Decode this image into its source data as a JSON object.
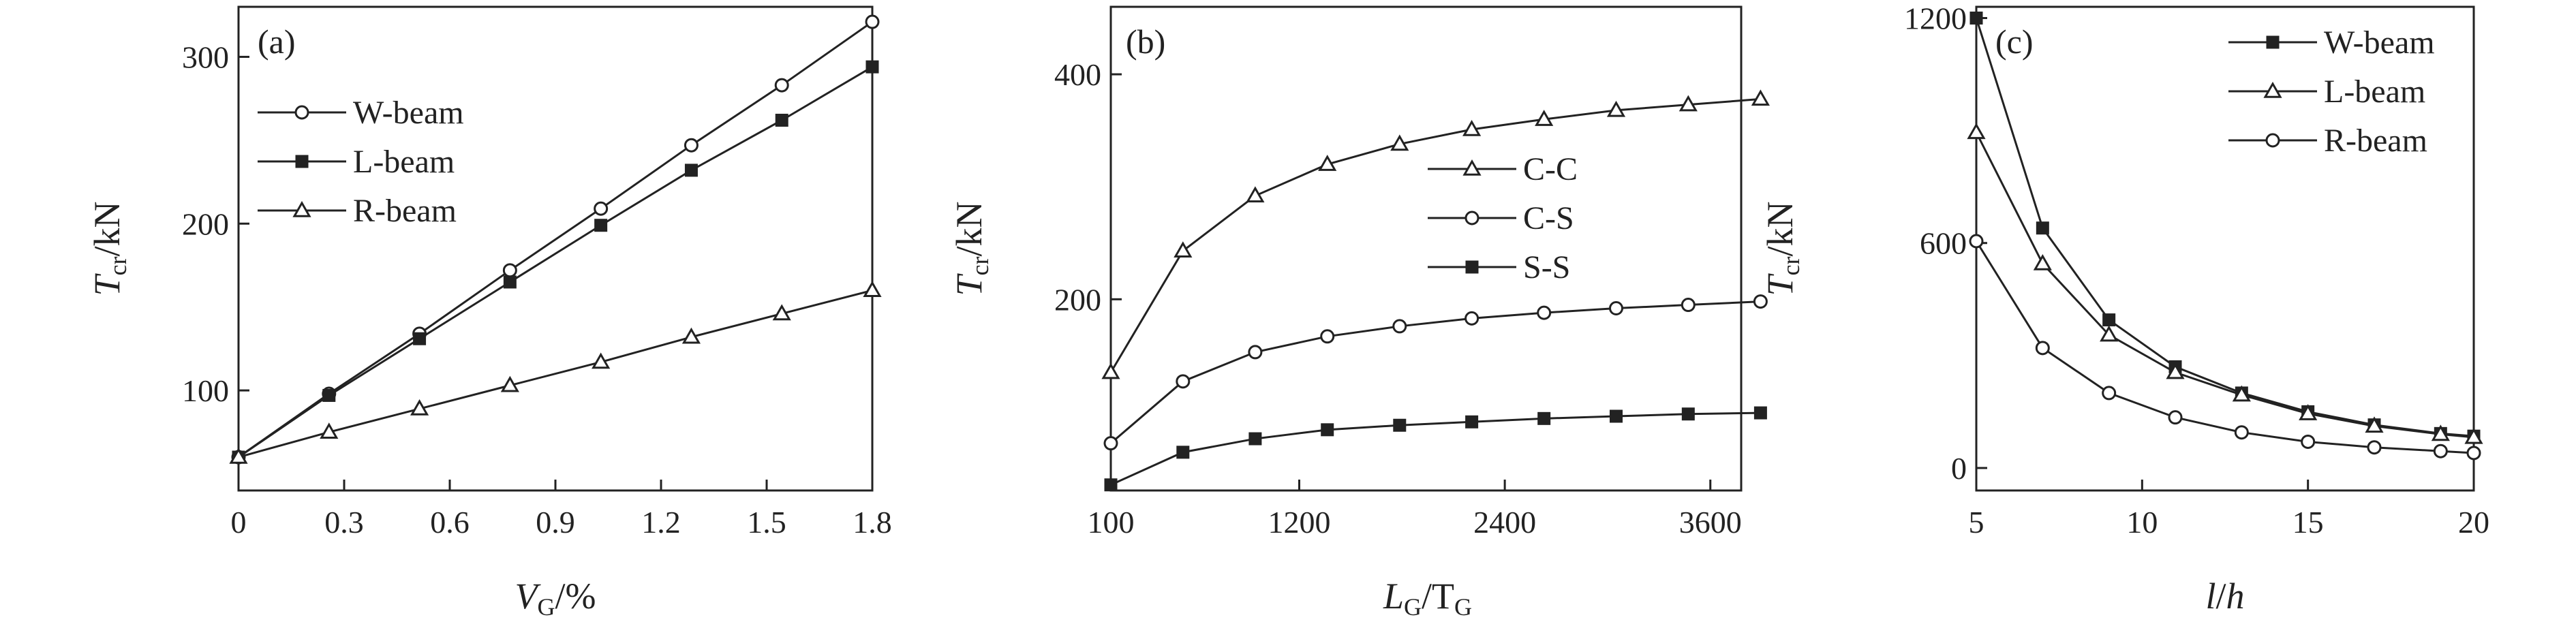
{
  "chart_data": [
    {
      "type": "line",
      "panel_label": "(a)",
      "xlabel": {
        "main": "V",
        "sub": "G",
        "suffix": "/%"
      },
      "ylabel": {
        "main": "T",
        "sub": "cr",
        "suffix": "/kN"
      },
      "xlim": [
        0,
        1.8
      ],
      "ylim": [
        40,
        330
      ],
      "xticks": [
        0,
        0.3,
        0.6,
        0.9,
        1.2,
        1.5,
        1.8
      ],
      "xtick_labels": [
        "0",
        "0.3",
        "0.6",
        "0.9",
        "1.2",
        "1.5",
        "1.8"
      ],
      "yticks": [
        100,
        200,
        300
      ],
      "ytick_labels": [
        "100",
        "200",
        "300"
      ],
      "grid": false,
      "legend_position": "top-left",
      "x": [
        0,
        0.257,
        0.514,
        0.771,
        1.029,
        1.286,
        1.543,
        1.8
      ],
      "series": [
        {
          "name": "W-beam",
          "marker": "circle-open",
          "values": [
            60,
            98,
            134,
            172,
            209,
            247,
            283,
            321
          ]
        },
        {
          "name": "L-beam",
          "marker": "square-filled",
          "values": [
            60,
            97,
            131,
            165,
            199,
            232,
            262,
            294
          ]
        },
        {
          "name": "R-beam",
          "marker": "triangle-open",
          "values": [
            60,
            75,
            89,
            103,
            117,
            132,
            146,
            160
          ]
        }
      ]
    },
    {
      "type": "line",
      "panel_label": "(b)",
      "xlabel": {
        "main": "L",
        "sub": "G",
        "mid": "/T",
        "sub2": "G"
      },
      "ylabel": {
        "main": "T",
        "sub": "cr",
        "suffix": "/kN"
      },
      "xlim": [
        100,
        3780
      ],
      "ylim": [
        30,
        460
      ],
      "xticks": [
        100,
        1200,
        2400,
        3600
      ],
      "xtick_labels": [
        "100",
        "1200",
        "2400",
        "3600"
      ],
      "yticks": [
        200,
        400
      ],
      "ytick_labels": [
        "200",
        "400"
      ],
      "grid": false,
      "legend_position": "right",
      "x": [
        100,
        521,
        943,
        1364,
        1786,
        2207,
        2629,
        3050,
        3471,
        3893
      ],
      "series": [
        {
          "name": "C-C",
          "marker": "triangle-open",
          "values": [
            135,
            243,
            292,
            320,
            338,
            351,
            360,
            368,
            373,
            378
          ]
        },
        {
          "name": "C-S",
          "marker": "circle-open",
          "values": [
            72,
            127,
            153,
            167,
            176,
            183,
            188,
            192,
            195,
            198
          ]
        },
        {
          "name": "S-S",
          "marker": "square-filled",
          "values": [
            35,
            64,
            76,
            84,
            88,
            91,
            94,
            96,
            98,
            99
          ]
        }
      ]
    },
    {
      "type": "line",
      "panel_label": "(c)",
      "xlabel": {
        "main": "l",
        "mid": "/",
        "main2": "h"
      },
      "ylabel": {
        "main": "T",
        "sub": "cr",
        "suffix": "/kN"
      },
      "xlim": [
        5,
        20
      ],
      "ylim": [
        -60,
        1230
      ],
      "xticks": [
        5,
        10,
        15,
        20
      ],
      "xtick_labels": [
        "5",
        "10",
        "15",
        "20"
      ],
      "yticks": [
        0,
        600,
        1200
      ],
      "ytick_labels": [
        "0",
        "600",
        "1200"
      ],
      "grid": false,
      "legend_position": "top-right",
      "x": [
        5,
        7,
        9,
        11,
        13,
        15,
        17,
        19,
        20
      ],
      "series": [
        {
          "name": "W-beam",
          "marker": "square-filled",
          "values": [
            1200,
            640,
            395,
            270,
            200,
            150,
            115,
            92,
            85
          ]
        },
        {
          "name": "L-beam",
          "marker": "triangle-open",
          "values": [
            895,
            545,
            355,
            255,
            195,
            145,
            112,
            90,
            82
          ]
        },
        {
          "name": "R-beam",
          "marker": "circle-open",
          "values": [
            605,
            320,
            200,
            135,
            95,
            70,
            55,
            45,
            40
          ]
        }
      ]
    }
  ]
}
